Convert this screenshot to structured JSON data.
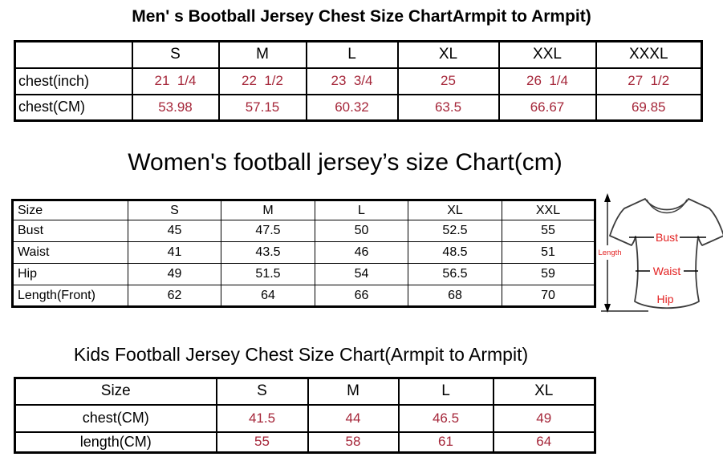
{
  "colors": {
    "value_red": "#a52639",
    "label_red": "#e32222",
    "line_black": "#000000",
    "shirt_outline": "#3c3c3c"
  },
  "men": {
    "title": "Men' s Bootball Jersey Chest Size ChartArmpit to Armpit)",
    "columns": [
      "",
      "S",
      "M",
      "L",
      "XL",
      "XXL",
      "XXXL"
    ],
    "rows": [
      {
        "label": "chest(inch)",
        "values": [
          "21  1/4",
          "22  1/2",
          "23  3/4",
          "25",
          "26  1/4",
          "27  1/2"
        ]
      },
      {
        "label": "chest(CM)",
        "values": [
          "53.98",
          "57.15",
          "60.32",
          "63.5",
          "66.67",
          "69.85"
        ]
      }
    ]
  },
  "women": {
    "title": "Women's football jersey’s size Chart(cm)",
    "columns": [
      "Size",
      "S",
      "M",
      "L",
      "XL",
      "XXL"
    ],
    "rows": [
      {
        "label": "Bust",
        "values": [
          "45",
          "47.5",
          "50",
          "52.5",
          "55"
        ]
      },
      {
        "label": "Waist",
        "values": [
          "41",
          "43.5",
          "46",
          "48.5",
          "51"
        ]
      },
      {
        "label": "Hip",
        "values": [
          "49",
          "51.5",
          "54",
          "56.5",
          "59"
        ]
      },
      {
        "label": "Length(Front)",
        "values": [
          "62",
          "64",
          "66",
          "68",
          "70"
        ]
      }
    ],
    "diagram": {
      "length_label": "Length",
      "bust_label": "Bust",
      "waist_label": "Waist",
      "hip_label": "Hip"
    }
  },
  "kids": {
    "title": "Kids Football Jersey Chest Size Chart(Armpit to Armpit)",
    "columns": [
      "Size",
      "S",
      "M",
      "L",
      "XL"
    ],
    "rows": [
      {
        "label": "chest(CM)",
        "values": [
          "41.5",
          "44",
          "46.5",
          "49"
        ]
      },
      {
        "label": "length(CM)",
        "values": [
          "55",
          "58",
          "61",
          "64"
        ]
      }
    ]
  }
}
